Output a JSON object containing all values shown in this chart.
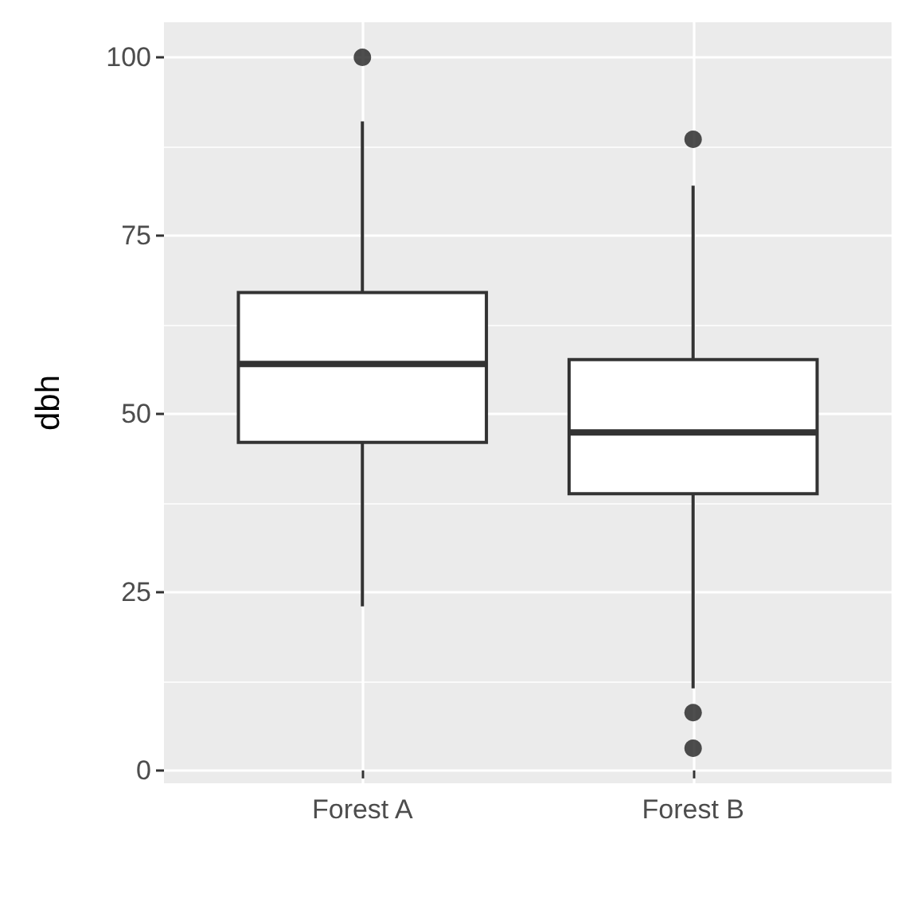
{
  "chart_data": {
    "type": "box",
    "categories": [
      "Forest A",
      "Forest B"
    ],
    "ylabel": "dbh",
    "boxes": [
      {
        "low": 23,
        "q1": 46,
        "median": 57,
        "q3": 67,
        "high": 91,
        "outliers": [
          100
        ]
      },
      {
        "low": 11.5,
        "q1": 38.8,
        "median": 47.4,
        "q3": 57.6,
        "high": 82,
        "outliers": [
          3.1,
          8.1,
          88.5
        ]
      }
    ],
    "ylim": [
      -1.8,
      104.9
    ],
    "yticks": [
      0,
      25,
      50,
      75,
      100
    ],
    "grid": true
  }
}
